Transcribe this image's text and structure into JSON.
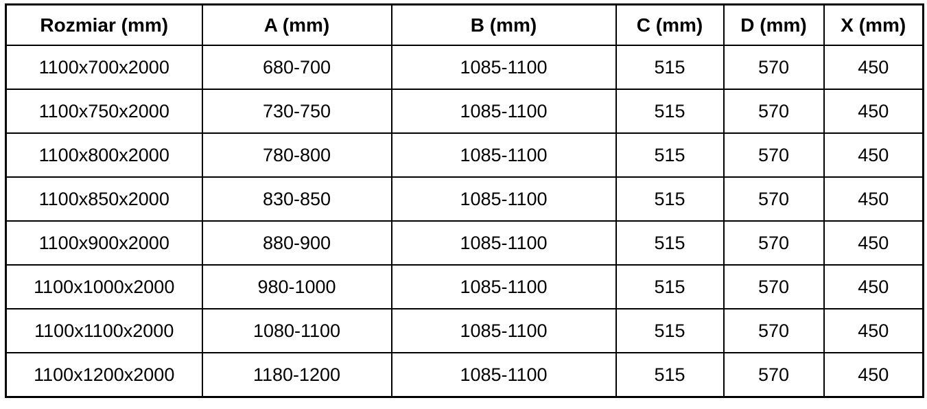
{
  "table": {
    "columns": [
      {
        "key": "rozmiar",
        "label": "Rozmiar (mm)"
      },
      {
        "key": "a",
        "label": "A (mm)"
      },
      {
        "key": "b",
        "label": "B (mm)"
      },
      {
        "key": "c",
        "label": "C (mm)"
      },
      {
        "key": "d",
        "label": "D (mm)"
      },
      {
        "key": "x",
        "label": "X (mm)"
      }
    ],
    "rows": [
      [
        "1100x700x2000",
        "680-700",
        "1085-1100",
        "515",
        "570",
        "450"
      ],
      [
        "1100x750x2000",
        "730-750",
        "1085-1100",
        "515",
        "570",
        "450"
      ],
      [
        "1100x800x2000",
        "780-800",
        "1085-1100",
        "515",
        "570",
        "450"
      ],
      [
        "1100x850x2000",
        "830-850",
        "1085-1100",
        "515",
        "570",
        "450"
      ],
      [
        "1100x900x2000",
        "880-900",
        "1085-1100",
        "515",
        "570",
        "450"
      ],
      [
        "1100x1000x2000",
        "980-1000",
        "1085-1100",
        "515",
        "570",
        "450"
      ],
      [
        "1100x1100x2000",
        "1080-1100",
        "1085-1100",
        "515",
        "570",
        "450"
      ],
      [
        "1100x1200x2000",
        "1180-1200",
        "1085-1100",
        "515",
        "570",
        "450"
      ]
    ],
    "colors": {
      "border": "#000000",
      "text": "#000000",
      "background": "#ffffff"
    }
  }
}
